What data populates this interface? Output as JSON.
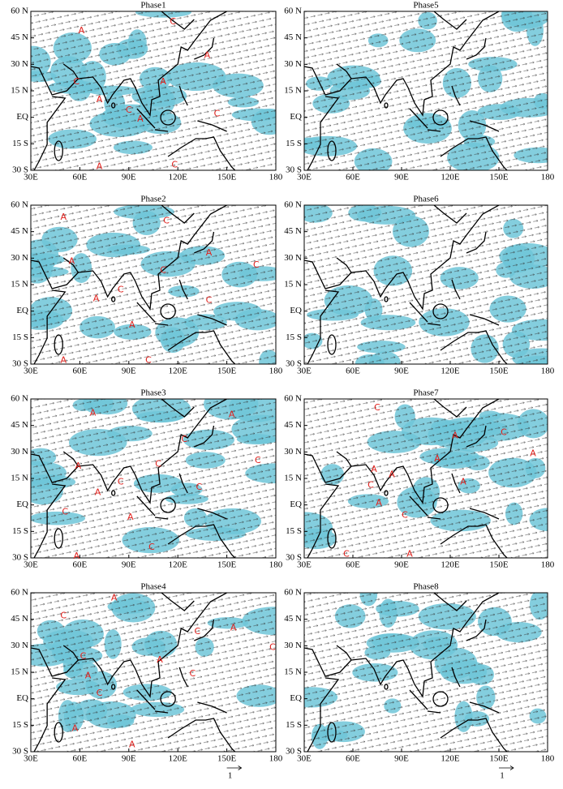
{
  "chart_data": {
    "type": "map",
    "xlim": [
      30,
      180
    ],
    "ylim": [
      -30,
      60
    ],
    "xticks": [
      {
        "value": 30,
        "label": "30E"
      },
      {
        "value": 60,
        "label": "60E"
      },
      {
        "value": 90,
        "label": "90E"
      },
      {
        "value": 120,
        "label": "120E"
      },
      {
        "value": 150,
        "label": "150E"
      },
      180
    ],
    "yticks": [
      {
        "value": 60,
        "label": "60 N"
      },
      {
        "value": 45,
        "label": "45 N"
      },
      {
        "value": 30,
        "label": "30 N"
      },
      {
        "value": 15,
        "label": "15 N"
      },
      {
        "value": 0,
        "label": "EQ"
      },
      {
        "value": -15,
        "label": "15 S"
      },
      {
        "value": -30,
        "label": "30 S"
      }
    ],
    "scale_label": "1",
    "panels": [
      {
        "title": "Phase1",
        "labels": [
          {
            "text": "A",
            "lon": 61,
            "lat": 49
          },
          {
            "text": "C",
            "lon": 117,
            "lat": 54
          },
          {
            "text": "A",
            "lon": 138,
            "lat": 35
          },
          {
            "text": "C",
            "lon": 58,
            "lat": 20
          },
          {
            "text": "A",
            "lon": 111,
            "lat": 20
          },
          {
            "text": "A",
            "lon": 72,
            "lat": 10
          },
          {
            "text": "C",
            "lon": 90,
            "lat": 4
          },
          {
            "text": "A",
            "lon": 97,
            "lat": -1
          },
          {
            "text": "C",
            "lon": 144,
            "lat": 2
          },
          {
            "text": "A",
            "lon": 72,
            "lat": -28
          },
          {
            "text": "C",
            "lon": 118,
            "lat": -27
          }
        ]
      },
      {
        "title": "Phase5",
        "labels": []
      },
      {
        "title": "Phase2",
        "labels": [
          {
            "text": "A",
            "lon": 50,
            "lat": 53
          },
          {
            "text": "C",
            "lon": 113,
            "lat": 51
          },
          {
            "text": "A",
            "lon": 139,
            "lat": 33
          },
          {
            "text": "C",
            "lon": 168,
            "lat": 26
          },
          {
            "text": "A",
            "lon": 55,
            "lat": 28
          },
          {
            "text": "C",
            "lon": 85,
            "lat": 12
          },
          {
            "text": "A",
            "lon": 70,
            "lat": 7
          },
          {
            "text": "C",
            "lon": 111,
            "lat": 23
          },
          {
            "text": "C",
            "lon": 139,
            "lat": 6
          },
          {
            "text": "A",
            "lon": 92,
            "lat": -8
          },
          {
            "text": "A",
            "lon": 50,
            "lat": -28
          },
          {
            "text": "C",
            "lon": 102,
            "lat": -28
          }
        ]
      },
      {
        "title": "Phase6",
        "labels": []
      },
      {
        "title": "Phase3",
        "labels": [
          {
            "text": "A",
            "lon": 68,
            "lat": 52
          },
          {
            "text": "C",
            "lon": 124,
            "lat": 37
          },
          {
            "text": "A",
            "lon": 153,
            "lat": 51
          },
          {
            "text": "C",
            "lon": 169,
            "lat": 25
          },
          {
            "text": "A",
            "lon": 59,
            "lat": 22
          },
          {
            "text": "C",
            "lon": 108,
            "lat": 23
          },
          {
            "text": "C",
            "lon": 85,
            "lat": 13
          },
          {
            "text": "A",
            "lon": 71,
            "lat": 7
          },
          {
            "text": "C",
            "lon": 133,
            "lat": 10
          },
          {
            "text": "C",
            "lon": 51,
            "lat": -4
          },
          {
            "text": "A",
            "lon": 91,
            "lat": -7
          },
          {
            "text": "C",
            "lon": 104,
            "lat": -24
          },
          {
            "text": "A",
            "lon": 58,
            "lat": -29
          }
        ]
      },
      {
        "title": "Phase7",
        "labels": [
          {
            "text": "C",
            "lon": 75,
            "lat": 55
          },
          {
            "text": "A",
            "lon": 123,
            "lat": 39
          },
          {
            "text": "C",
            "lon": 153,
            "lat": 41
          },
          {
            "text": "A",
            "lon": 171,
            "lat": 29
          },
          {
            "text": "A",
            "lon": 73,
            "lat": 20
          },
          {
            "text": "A",
            "lon": 84,
            "lat": 17
          },
          {
            "text": "A",
            "lon": 112,
            "lat": 26
          },
          {
            "text": "C",
            "lon": 71,
            "lat": 11
          },
          {
            "text": "A",
            "lon": 128,
            "lat": 13
          },
          {
            "text": "A",
            "lon": 76,
            "lat": 1
          },
          {
            "text": "C",
            "lon": 92,
            "lat": -6
          },
          {
            "text": "C",
            "lon": 56,
            "lat": -28
          },
          {
            "text": "A",
            "lon": 95,
            "lat": -28
          }
        ]
      },
      {
        "title": "Phase4",
        "labels": [
          {
            "text": "A",
            "lon": 81,
            "lat": 57
          },
          {
            "text": "C",
            "lon": 50,
            "lat": 47
          },
          {
            "text": "C",
            "lon": 132,
            "lat": 38
          },
          {
            "text": "A",
            "lon": 154,
            "lat": 40
          },
          {
            "text": "C",
            "lon": 178,
            "lat": 29
          },
          {
            "text": "C",
            "lon": 62,
            "lat": 24
          },
          {
            "text": "A",
            "lon": 65,
            "lat": 13
          },
          {
            "text": "C",
            "lon": 72,
            "lat": 3
          },
          {
            "text": "A",
            "lon": 109,
            "lat": 22
          },
          {
            "text": "C",
            "lon": 129,
            "lat": 14
          },
          {
            "text": "A",
            "lon": 57,
            "lat": -17
          },
          {
            "text": "A",
            "lon": 92,
            "lat": -26
          }
        ]
      },
      {
        "title": "Phase8",
        "labels": []
      }
    ]
  }
}
